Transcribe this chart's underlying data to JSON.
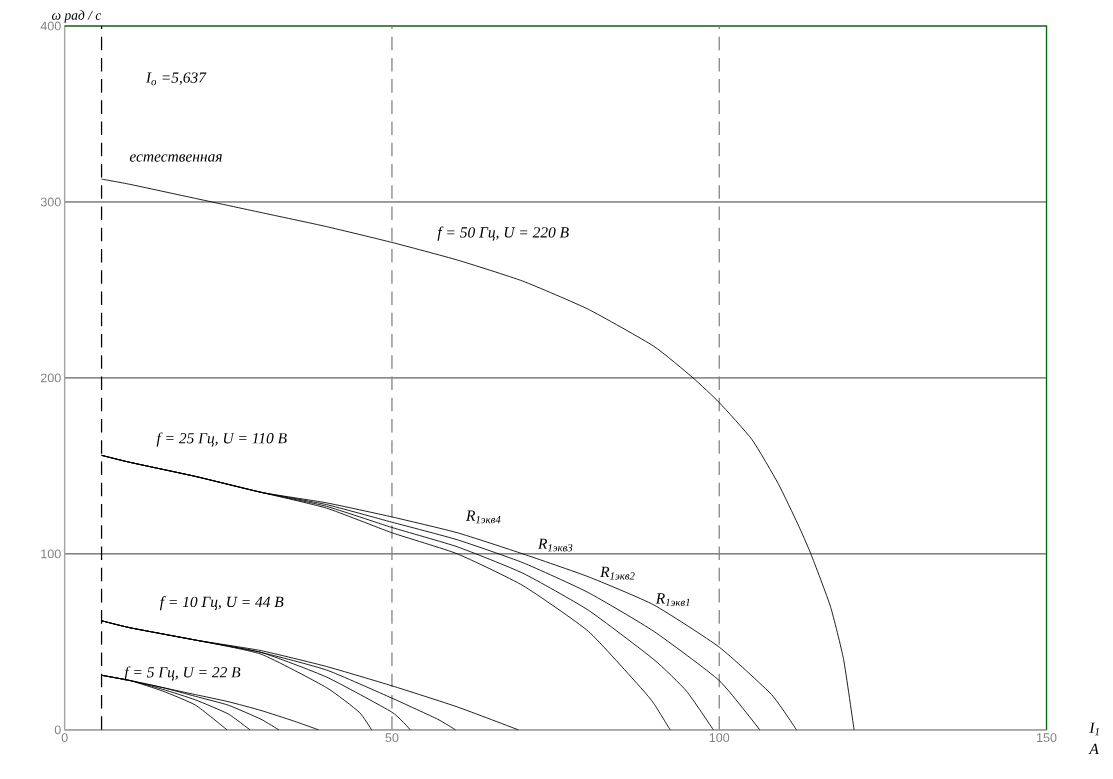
{
  "chart_data": {
    "type": "line",
    "xlabel": "I$_{1}$ A",
    "ylabel": "ω рад / с",
    "xlim": [
      0,
      150
    ],
    "ylim": [
      0,
      400
    ],
    "xticks": [
      0,
      50,
      100,
      150
    ],
    "yticks": [
      0,
      100,
      200,
      300,
      400
    ],
    "grid": "y",
    "series": [
      {
        "color": "#000000",
        "x": [
          5.637,
          10,
          20,
          30,
          40,
          50,
          60,
          70,
          80,
          90,
          96,
          100,
          105,
          109,
          112,
          114,
          117,
          119,
          120.6
        ],
        "values": [
          313,
          310,
          302,
          294,
          286,
          277,
          267,
          255,
          239,
          218,
          200,
          186,
          165,
          140,
          117,
          100,
          70,
          40,
          0
        ]
      },
      {
        "color": "#000000",
        "x": [
          5.637,
          10,
          20,
          30,
          40,
          50,
          60,
          70,
          80,
          88,
          90,
          92.5
        ],
        "values": [
          156,
          152,
          144,
          135,
          126,
          112,
          100,
          82,
          56,
          24,
          15,
          0
        ]
      },
      {
        "color": "#000000",
        "x": [
          5.637,
          10,
          20,
          30,
          40,
          50,
          60,
          70,
          80,
          90,
          95,
          99.1
        ],
        "values": [
          156,
          152,
          144,
          135,
          127,
          115,
          104,
          89,
          68,
          40,
          22,
          0
        ]
      },
      {
        "color": "#000000",
        "x": [
          5.637,
          10,
          20,
          30,
          40,
          50,
          60,
          70,
          80,
          90,
          100,
          106.2
        ],
        "values": [
          156,
          152,
          144,
          135,
          128,
          118,
          108,
          95,
          78,
          56,
          28,
          0
        ]
      },
      {
        "color": "#000000",
        "x": [
          5.637,
          10,
          20,
          30,
          40,
          50,
          60,
          70,
          80,
          90,
          100,
          108,
          111.8
        ],
        "values": [
          156,
          152,
          144,
          135,
          129,
          121,
          112,
          100,
          87,
          71,
          47,
          20,
          0
        ]
      },
      {
        "color": "#000000",
        "x": [
          5.637,
          10,
          20,
          30,
          40,
          45,
          46.9
        ],
        "values": [
          62,
          58,
          51,
          43,
          24,
          10,
          0
        ]
      },
      {
        "color": "#000000",
        "x": [
          5.637,
          10,
          20,
          30,
          40,
          50,
          52.8
        ],
        "values": [
          62,
          58,
          51,
          44,
          30,
          10,
          0
        ]
      },
      {
        "color": "#000000",
        "x": [
          5.637,
          10,
          20,
          30,
          40,
          50,
          57,
          59.7
        ],
        "values": [
          62,
          58,
          51,
          44,
          34,
          18,
          6,
          0
        ]
      },
      {
        "color": "#000000",
        "x": [
          5.637,
          10,
          20,
          30,
          40,
          50,
          60,
          69.3
        ],
        "values": [
          62,
          58,
          51,
          45,
          36,
          25,
          13,
          0
        ]
      },
      {
        "color": "#000000",
        "x": [
          5.637,
          10,
          15,
          20,
          24.8
        ],
        "values": [
          31,
          28,
          22,
          14,
          0
        ]
      },
      {
        "color": "#000000",
        "x": [
          5.637,
          10,
          15,
          20,
          25,
          28.3
        ],
        "values": [
          31,
          28,
          23,
          17,
          9,
          0
        ]
      },
      {
        "color": "#000000",
        "x": [
          5.637,
          10,
          15,
          20,
          25,
          30,
          32.7
        ],
        "values": [
          31,
          28,
          24,
          19,
          14,
          6,
          0
        ]
      },
      {
        "color": "#000000",
        "x": [
          5.637,
          10,
          15,
          20,
          25,
          30,
          35,
          38.8
        ],
        "values": [
          31,
          28,
          24,
          20,
          16,
          11,
          5,
          0
        ]
      }
    ],
    "ref_lines": [
      {
        "axis": "x",
        "value": 5.637,
        "color": "#000000",
        "line_style": "dashed"
      },
      {
        "axis": "x",
        "value": 50,
        "color": "#808080",
        "line_style": "dashed"
      },
      {
        "axis": "x",
        "value": 100,
        "color": "#808080",
        "line_style": "dashed"
      }
    ],
    "annotations": [
      "I$_{o}$ =5,637",
      "естественная",
      "f = 50 Гц, U = 220 В",
      "f = 25 Гц, U = 110 В",
      "f = 10 Гц, U = 44 В",
      "f = 5 Гц, U = 22 В",
      "R$_{1экв4}$",
      "R$_{1экв3}$",
      "R$_{1экв2}$",
      "R$_{1экв1}$"
    ]
  }
}
